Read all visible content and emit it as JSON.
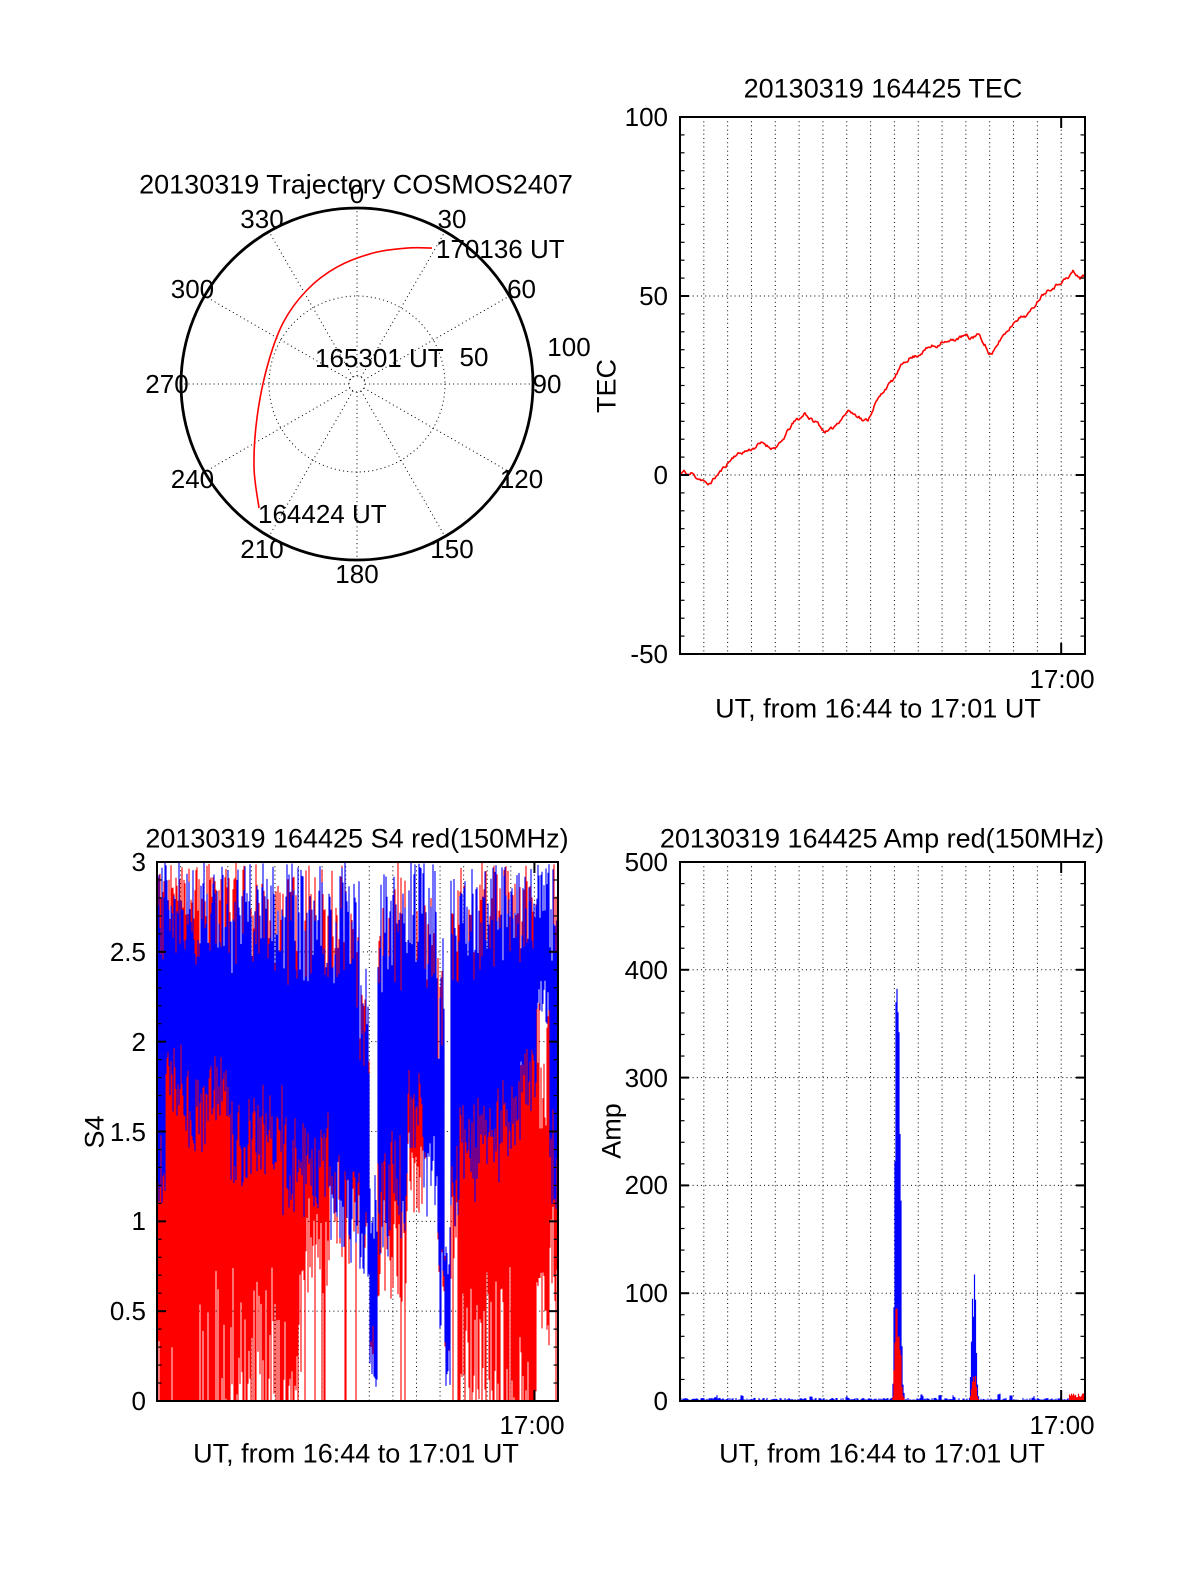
{
  "colors": {
    "red": "#ff0000",
    "blue": "#0000ff",
    "axis": "#000000",
    "background": "#ffffff"
  },
  "chart_data": [
    {
      "type": "polar-trajectory",
      "title": "20130319 Trajectory COSMOS2407",
      "azimuth_labels": [
        "0",
        "30",
        "60",
        "90",
        "120",
        "150",
        "180",
        "210",
        "240",
        "270",
        "300",
        "330"
      ],
      "azimuth_step_deg": 30,
      "radial_labels": [
        {
          "text": "50",
          "value": 50
        },
        {
          "text": "100",
          "value": 100
        }
      ],
      "rings": [
        50,
        100
      ],
      "rmax": 100,
      "grid": "dotted",
      "annotations": [
        {
          "text": "164424 UT",
          "at": "start"
        },
        {
          "text": "165301 UT",
          "at": "middle"
        },
        {
          "text": "170136 UT",
          "at": "end"
        }
      ],
      "trajectory_az_r": [
        [
          218.3,
          89.8
        ],
        [
          231.1,
          75.2
        ],
        [
          251.7,
          59.8
        ],
        [
          280.7,
          52.0
        ],
        [
          309.5,
          54.5
        ],
        [
          332.0,
          60.5
        ],
        [
          350.3,
          67.4
        ],
        [
          7.0,
          75.0
        ],
        [
          20.2,
          82.3
        ],
        [
          28.9,
          88.2
        ]
      ],
      "trajectory_color": "#ff0000"
    },
    {
      "type": "line",
      "title": "20130319 164425 TEC",
      "ylabel": "TEC",
      "xlabel": "UT, from 16:44 to 17:01 UT",
      "xtick_label": "17:00",
      "xtick_minute": 16,
      "x_total_minutes": 17,
      "ylim": [
        -50,
        100
      ],
      "yticks": [
        100,
        50,
        0,
        -50
      ],
      "ygrid": [
        50,
        0
      ],
      "yminor": 5,
      "grid": "dotted",
      "series_color": "#ff0000",
      "noise_amp": 0.9,
      "seed": 11,
      "points": [
        [
          0,
          0
        ],
        [
          0.15,
          1
        ],
        [
          0.35,
          0
        ],
        [
          0.5,
          0.5
        ],
        [
          0.65,
          -0.5
        ],
        [
          0.8,
          -1
        ],
        [
          1.0,
          -1.5
        ],
        [
          1.15,
          -3
        ],
        [
          1.3,
          -2
        ],
        [
          1.5,
          -0.5
        ],
        [
          1.7,
          1
        ],
        [
          1.9,
          2.5
        ],
        [
          2.1,
          4
        ],
        [
          2.3,
          5.5
        ],
        [
          2.5,
          6
        ],
        [
          2.7,
          6.5
        ],
        [
          2.9,
          7
        ],
        [
          3.1,
          7.5
        ],
        [
          3.3,
          8.5
        ],
        [
          3.5,
          9
        ],
        [
          3.7,
          8
        ],
        [
          3.9,
          7.5
        ],
        [
          4.1,
          8
        ],
        [
          4.3,
          9.5
        ],
        [
          4.5,
          12
        ],
        [
          4.7,
          14
        ],
        [
          4.9,
          15.5
        ],
        [
          5.1,
          16
        ],
        [
          5.25,
          17.5
        ],
        [
          5.4,
          16
        ],
        [
          5.6,
          15
        ],
        [
          5.8,
          14.5
        ],
        [
          6.0,
          12.5
        ],
        [
          6.2,
          12
        ],
        [
          6.4,
          13
        ],
        [
          6.6,
          14.5
        ],
        [
          6.8,
          16
        ],
        [
          7.0,
          17.5
        ],
        [
          7.1,
          18
        ],
        [
          7.3,
          17
        ],
        [
          7.5,
          16.5
        ],
        [
          7.7,
          15
        ],
        [
          7.9,
          15.5
        ],
        [
          8.0,
          17
        ],
        [
          8.2,
          20
        ],
        [
          8.4,
          22
        ],
        [
          8.6,
          24
        ],
        [
          8.8,
          25.5
        ],
        [
          9.0,
          27
        ],
        [
          9.2,
          29.5
        ],
        [
          9.4,
          31.5
        ],
        [
          9.6,
          32.5
        ],
        [
          9.8,
          33
        ],
        [
          10.0,
          33.5
        ],
        [
          10.2,
          34.5
        ],
        [
          10.4,
          35.5
        ],
        [
          10.6,
          36
        ],
        [
          10.8,
          36
        ],
        [
          11.0,
          37.5
        ],
        [
          11.2,
          37
        ],
        [
          11.4,
          37.5
        ],
        [
          11.6,
          38
        ],
        [
          11.8,
          38.5
        ],
        [
          12.0,
          39
        ],
        [
          12.15,
          38
        ],
        [
          12.3,
          38.5
        ],
        [
          12.5,
          39.5
        ],
        [
          12.65,
          38
        ],
        [
          12.8,
          36.5
        ],
        [
          12.95,
          34
        ],
        [
          13.1,
          33.5
        ],
        [
          13.3,
          36
        ],
        [
          13.5,
          38.5
        ],
        [
          13.7,
          40
        ],
        [
          13.9,
          41.5
        ],
        [
          14.1,
          43.5
        ],
        [
          14.3,
          44
        ],
        [
          14.5,
          44.5
        ],
        [
          14.7,
          45.5
        ],
        [
          14.9,
          47.5
        ],
        [
          15.1,
          49.5
        ],
        [
          15.3,
          51
        ],
        [
          15.5,
          52
        ],
        [
          15.7,
          52.5
        ],
        [
          15.9,
          53.5
        ],
        [
          16.1,
          54.5
        ],
        [
          16.3,
          55
        ],
        [
          16.5,
          57
        ],
        [
          16.65,
          55.5
        ],
        [
          16.8,
          55
        ],
        [
          16.9,
          56
        ],
        [
          17.0,
          55.5
        ]
      ]
    },
    {
      "type": "scintillation-noise",
      "title": "20130319 164425 S4 red(150MHz)",
      "ylabel": "S4",
      "xlabel": "UT, from 16:44 to 17:01 UT",
      "xtick_label": "17:00",
      "xtick_minute": 16,
      "x_total_minutes": 17,
      "ylim": [
        0,
        3
      ],
      "yticks": [
        3,
        2.5,
        2,
        1.5,
        1,
        0.5,
        0
      ],
      "ygrid": [
        2.5,
        2,
        1.5,
        1,
        0.5
      ],
      "yminor": 0.1,
      "grid": "dotted",
      "red_frequency": "150MHz",
      "series_colors": [
        "#ff0000",
        "#0000ff"
      ],
      "seed": 22,
      "segments_t0_t1_rlo_rhi_rfp_blo_bhi_bfp": [
        [
          0,
          0.35,
          0,
          3,
          0.85,
          1.1,
          3,
          0
        ],
        [
          0.35,
          1.1,
          0,
          3,
          0.8,
          1.55,
          3,
          0
        ],
        [
          1.1,
          2.2,
          0,
          3,
          0.75,
          1.35,
          3,
          0
        ],
        [
          2.2,
          3.1,
          0,
          3,
          0.7,
          1.5,
          3,
          0
        ],
        [
          3.1,
          4.2,
          0,
          3,
          0.6,
          1.15,
          3,
          0
        ],
        [
          4.2,
          5.3,
          0,
          3,
          0.55,
          1.25,
          3,
          0
        ],
        [
          5.3,
          6.3,
          0,
          3,
          0.35,
          1.0,
          3,
          0
        ],
        [
          6.3,
          7.3,
          0.55,
          3,
          0.08,
          1.05,
          3,
          0
        ],
        [
          7.3,
          8.0,
          0.8,
          3,
          0.05,
          0.85,
          3,
          0
        ],
        [
          8.0,
          8.6,
          0.7,
          2.85,
          0.02,
          0.75,
          2.9,
          0
        ],
        [
          8.6,
          9.0,
          0.6,
          2.3,
          0,
          0.5,
          2.5,
          0
        ],
        [
          9.0,
          9.35,
          0.09,
          0.95,
          0,
          0.07,
          1.3,
          0
        ],
        [
          9.35,
          9.8,
          0.55,
          2.85,
          0.03,
          0.8,
          3,
          0
        ],
        [
          9.8,
          10.6,
          0.55,
          3,
          0.06,
          0.9,
          3,
          0
        ],
        [
          10.6,
          11.3,
          1.0,
          3,
          0.02,
          1.4,
          3,
          0
        ],
        [
          11.3,
          11.9,
          1.2,
          3,
          0,
          1.0,
          3,
          0
        ],
        [
          11.9,
          12.2,
          0.5,
          2.5,
          0,
          0.4,
          2.7,
          0
        ],
        [
          12.2,
          12.45,
          0.15,
          0.85,
          0,
          0.07,
          1.0,
          0
        ],
        [
          12.45,
          12.8,
          0.6,
          2.9,
          0.05,
          0.9,
          3,
          0
        ],
        [
          12.8,
          13.6,
          0,
          3,
          0.5,
          1.1,
          3,
          0
        ],
        [
          13.6,
          14.6,
          0,
          3,
          0.3,
          1.2,
          3,
          0
        ],
        [
          14.6,
          15.4,
          0,
          3,
          0.45,
          1.35,
          3,
          0.04
        ],
        [
          15.4,
          16.1,
          0,
          3,
          0.55,
          1.6,
          3,
          0
        ],
        [
          16.1,
          16.65,
          0.3,
          2.3,
          0.05,
          2.1,
          3,
          0
        ],
        [
          16.65,
          17,
          0.55,
          3,
          0.15,
          1.05,
          3,
          0
        ]
      ]
    },
    {
      "type": "line-spikes",
      "title": "20130319 164425 Amp red(150MHz)",
      "ylabel": "Amp",
      "xlabel": "UT, from 16:44 to 17:01 UT",
      "xtick_label": "17:00",
      "xtick_minute": 16,
      "x_total_minutes": 17,
      "ylim": [
        0,
        500
      ],
      "yticks": [
        500,
        400,
        300,
        200,
        100,
        0
      ],
      "ygrid": [
        400,
        300,
        200,
        100
      ],
      "yminor": 20,
      "grid": "dotted",
      "red_frequency": "150MHz",
      "series_colors": [
        "#0000ff",
        "#ff0000"
      ],
      "seed": 33,
      "baseline": {
        "blue_max": 2.5,
        "red_max": 1
      },
      "blips_t_h": [
        [
          1.5,
          3
        ],
        [
          2.6,
          2.5
        ],
        [
          5.5,
          2
        ],
        [
          7.0,
          2.5
        ],
        [
          10.15,
          4
        ],
        [
          10.9,
          3
        ],
        [
          11.5,
          2.5
        ],
        [
          13.4,
          4
        ],
        [
          13.9,
          2.5
        ],
        [
          14.8,
          2
        ]
      ],
      "spikes": [
        {
          "columns_t_blue_red": [
            [
              8.9,
              3,
              1
            ],
            [
              8.95,
              20,
              5
            ],
            [
              9.0,
              120,
              40
            ],
            [
              9.04,
              290,
              65
            ],
            [
              9.07,
              410,
              95
            ],
            [
              9.1,
              430,
              103
            ],
            [
              9.13,
              370,
              70
            ],
            [
              9.16,
              355,
              55
            ],
            [
              9.19,
              340,
              60
            ],
            [
              9.22,
              300,
              50
            ],
            [
              9.25,
              200,
              45
            ],
            [
              9.28,
              175,
              40
            ],
            [
              9.31,
              60,
              15
            ],
            [
              9.36,
              15,
              5
            ],
            [
              9.42,
              5,
              2
            ]
          ]
        },
        {
          "columns_t_blue_red": [
            [
              12.15,
              3,
              1
            ],
            [
              12.2,
              25,
              5
            ],
            [
              12.24,
              60,
              12
            ],
            [
              12.28,
              95,
              18
            ],
            [
              12.31,
              75,
              25
            ],
            [
              12.34,
              105,
              20
            ],
            [
              12.37,
              112,
              15
            ],
            [
              12.4,
              90,
              22
            ],
            [
              12.43,
              60,
              18
            ],
            [
              12.46,
              30,
              8
            ],
            [
              12.5,
              8,
              3
            ],
            [
              12.55,
              2,
              1
            ]
          ]
        }
      ],
      "end_bump": {
        "t0": 16.35,
        "t1": 16.95,
        "red_height": 6,
        "blue_height": 2
      }
    }
  ]
}
